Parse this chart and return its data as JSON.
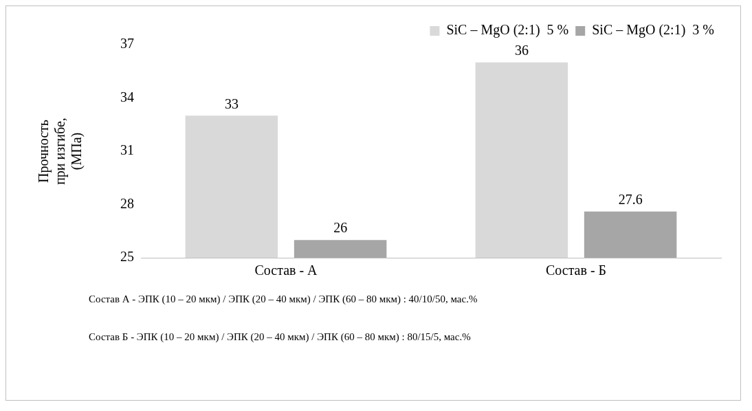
{
  "chart_data": {
    "type": "bar",
    "ylabel": "Прочность\nпри изгибе,\n(МПа)",
    "categories": [
      "Состав - А",
      "Состав - Б"
    ],
    "series": [
      {
        "name": "SiC – MgO (2:1)  5 %",
        "color": "#d9d9d9",
        "values": [
          33,
          36
        ]
      },
      {
        "name": "SiC – MgO (2:1)  3 %",
        "color": "#a6a6a6",
        "values": [
          26,
          27.6
        ]
      }
    ],
    "ylim": [
      25,
      37
    ],
    "yticks": [
      25,
      28,
      31,
      34,
      37
    ],
    "grid": false,
    "legend": "top right",
    "data_labels": true,
    "annotations": [
      "Состав А - ЭПК (10 – 20 мкм) / ЭПК (20 – 40 мкм) / ЭПК (60 – 80 мкм) : 40/10/50,  мас.%",
      "Состав Б - ЭПК (10 – 20 мкм) / ЭПК (20 – 40 мкм) / ЭПК (60 – 80 мкм) : 80/15/5,  мас.%"
    ]
  }
}
